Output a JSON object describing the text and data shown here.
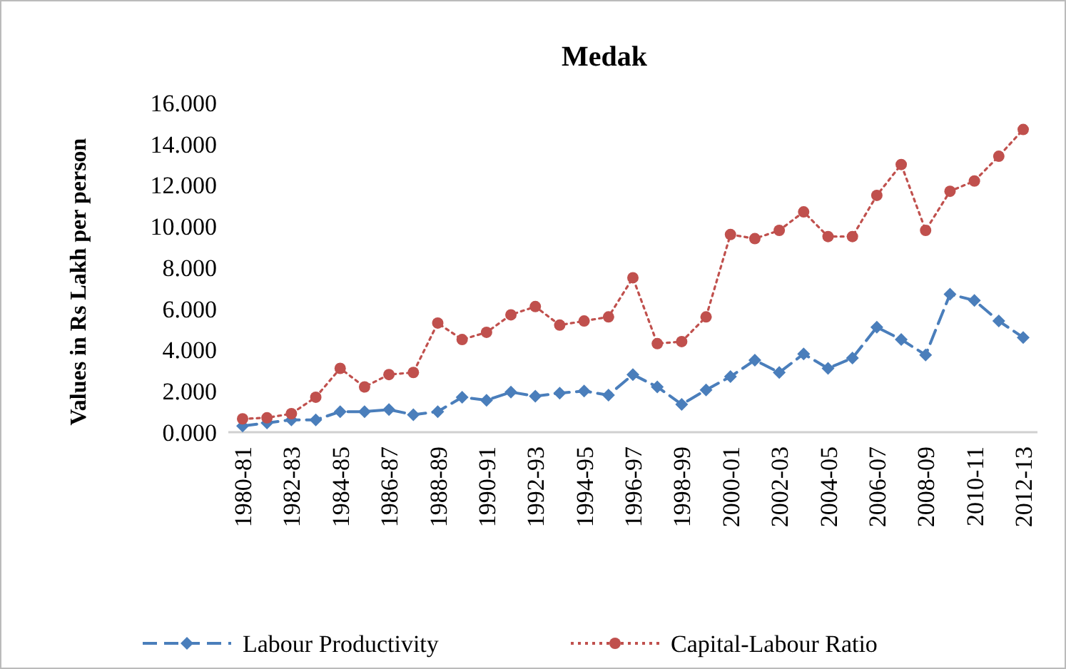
{
  "chart_data": {
    "type": "line",
    "title": "Medak",
    "ylabel": "Values in Rs Lakh per person",
    "categories": [
      "1980-81",
      null,
      "1982-83",
      null,
      "1984-85",
      null,
      "1986-87",
      null,
      "1988-89",
      null,
      "1990-91",
      null,
      "1992-93",
      null,
      "1994-95",
      null,
      "1996-97",
      null,
      "1998-99",
      null,
      "2000-01",
      null,
      "2002-03",
      null,
      "2004-05",
      null,
      "2006-07",
      null,
      "2008-09",
      null,
      "2010-11",
      null,
      "2012-13"
    ],
    "series": [
      {
        "name": "Labour Productivity",
        "color": "#4a7ebb",
        "marker": "diamond",
        "line_style": "dashed",
        "values": [
          0.3,
          0.45,
          0.6,
          0.6,
          1.0,
          1.0,
          1.1,
          0.85,
          1.0,
          1.7,
          1.55,
          1.95,
          1.75,
          1.9,
          2.0,
          1.8,
          2.8,
          2.2,
          1.35,
          2.05,
          2.7,
          3.5,
          2.9,
          3.8,
          3.1,
          3.6,
          5.1,
          4.5,
          3.75,
          6.7,
          6.4,
          5.4,
          4.6
        ]
      },
      {
        "name": "Capital-Labour Ratio",
        "color": "#c0504d",
        "marker": "circle",
        "line_style": "dotted",
        "values": [
          0.65,
          0.7,
          0.9,
          1.7,
          3.1,
          2.2,
          2.8,
          2.9,
          5.3,
          4.5,
          4.85,
          5.7,
          6.1,
          5.2,
          5.4,
          5.6,
          7.5,
          4.3,
          4.4,
          5.6,
          9.6,
          9.4,
          9.8,
          10.7,
          9.5,
          9.5,
          11.5,
          13.0,
          9.8,
          11.7,
          12.2,
          13.4,
          14.7
        ]
      }
    ],
    "ylim": [
      0,
      16
    ],
    "yticks": [
      {
        "value": 0,
        "label": "0.000"
      },
      {
        "value": 2,
        "label": "2.000"
      },
      {
        "value": 4,
        "label": "4.000"
      },
      {
        "value": 6,
        "label": "6.000"
      },
      {
        "value": 8,
        "label": "8.000"
      },
      {
        "value": 10,
        "label": "10.000"
      },
      {
        "value": 12,
        "label": "12.000"
      },
      {
        "value": 14,
        "label": "14.000"
      },
      {
        "value": 16,
        "label": "16.000"
      }
    ],
    "legend": "bottom"
  }
}
